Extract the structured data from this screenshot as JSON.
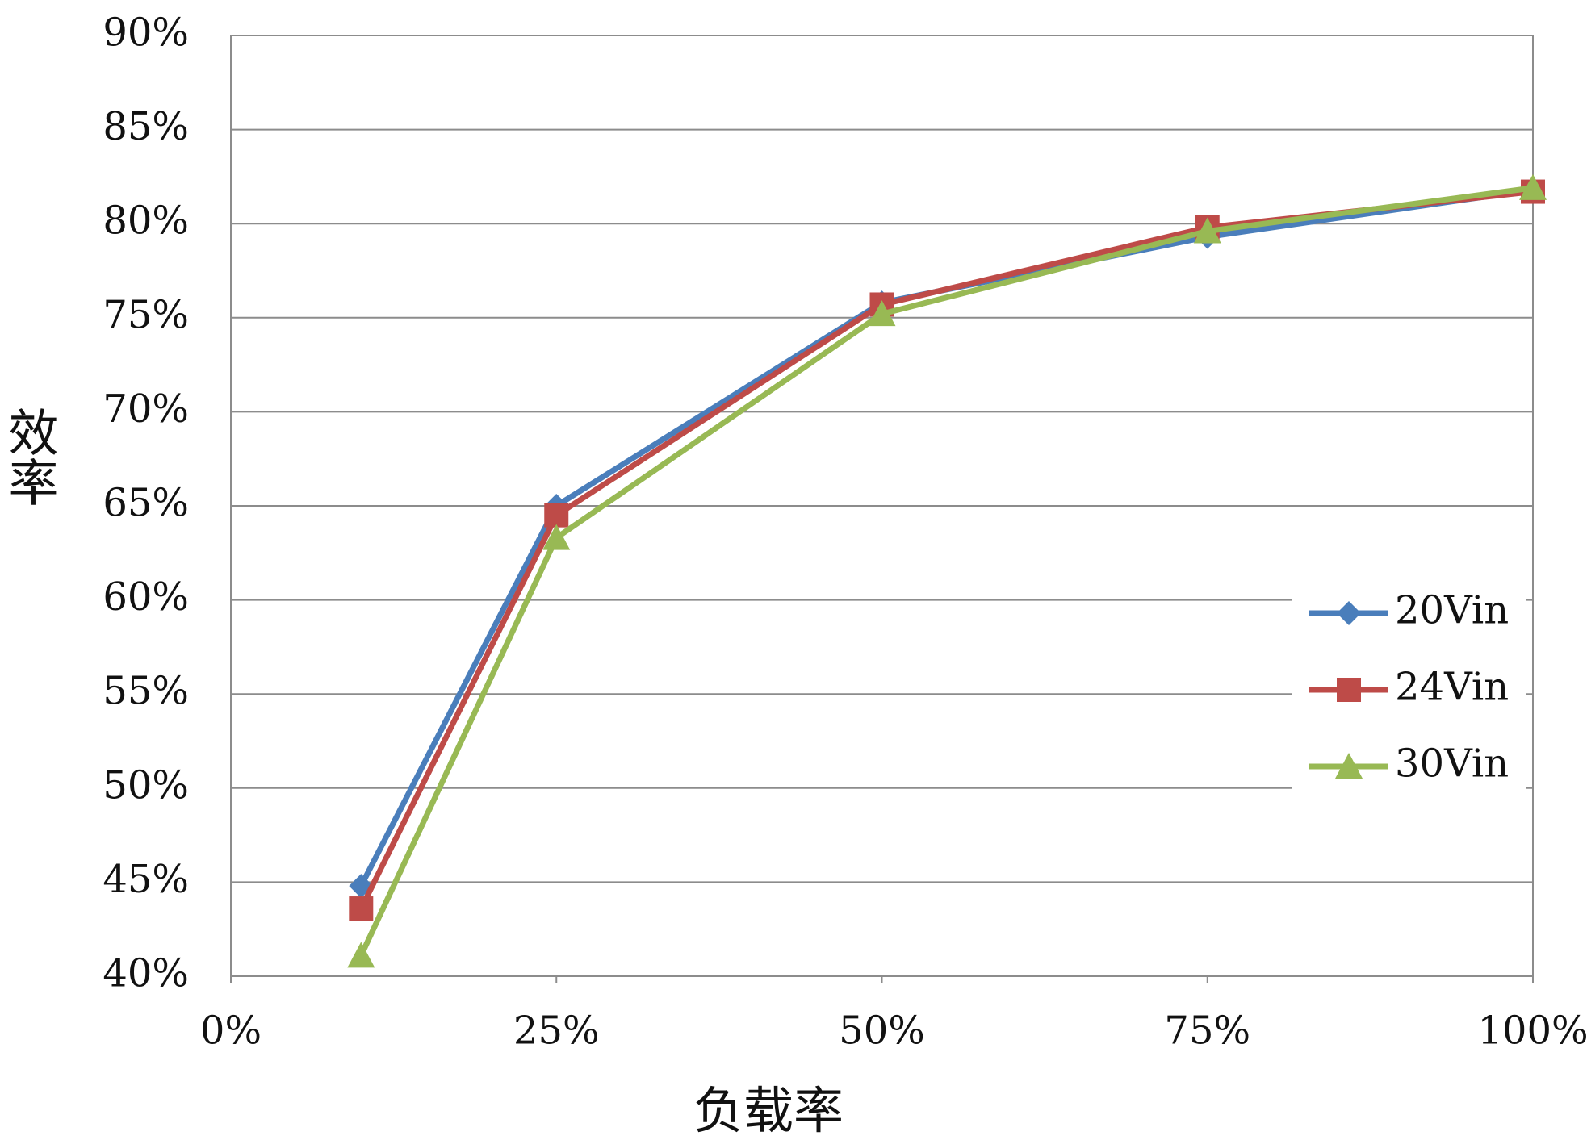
{
  "chart_data": {
    "type": "line",
    "x_label": "负载率",
    "y_label": "效率",
    "xlim": [
      0,
      100
    ],
    "xticks": [
      {
        "value": 0,
        "label": "0%"
      },
      {
        "value": 25,
        "label": "25%"
      },
      {
        "value": 50,
        "label": "50%"
      },
      {
        "value": 75,
        "label": "75%"
      },
      {
        "value": 100,
        "label": "100%"
      }
    ],
    "ylim": [
      40,
      90
    ],
    "yticks": [
      {
        "value": 40,
        "label": "40%"
      },
      {
        "value": 45,
        "label": "45%"
      },
      {
        "value": 50,
        "label": "50%"
      },
      {
        "value": 55,
        "label": "55%"
      },
      {
        "value": 60,
        "label": "60%"
      },
      {
        "value": 65,
        "label": "65%"
      },
      {
        "value": 70,
        "label": "70%"
      },
      {
        "value": 75,
        "label": "75%"
      },
      {
        "value": 80,
        "label": "80%"
      },
      {
        "value": 85,
        "label": "85%"
      },
      {
        "value": 90,
        "label": "90%"
      }
    ],
    "grid": true,
    "legend": "right",
    "x": [
      10,
      25,
      50,
      75,
      100
    ],
    "series": [
      {
        "name": "20Vin",
        "color": "#4a7ebb",
        "marker": "diamond",
        "values": [
          44.8,
          65.0,
          75.8,
          79.3,
          81.8
        ]
      },
      {
        "name": "24Vin",
        "color": "#be4b48",
        "marker": "square",
        "values": [
          43.6,
          64.5,
          75.7,
          79.8,
          81.7
        ]
      },
      {
        "name": "30Vin",
        "color": "#98b954",
        "marker": "triangle",
        "values": [
          41.1,
          63.3,
          75.2,
          79.6,
          81.9
        ]
      }
    ]
  }
}
